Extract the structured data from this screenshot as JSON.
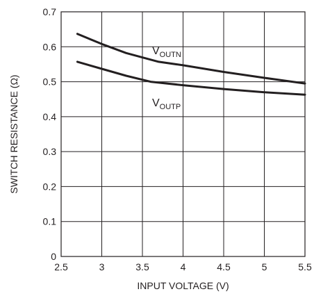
{
  "chart_data": {
    "type": "line",
    "title": "",
    "xlabel": "INPUT VOLTAGE (V)",
    "ylabel": "SWITCH RESISTANCE (Ω)",
    "xlim": [
      2.5,
      5.5
    ],
    "ylim": [
      0,
      0.7
    ],
    "grid": true,
    "x_ticks": [
      "2.5",
      "3",
      "3.5",
      "4",
      "4.5",
      "5",
      "5.5"
    ],
    "y_ticks": [
      "0",
      "0.1",
      "0.2",
      "0.3",
      "0.4",
      "0.5",
      "0.6",
      "0.7"
    ],
    "series": [
      {
        "name": "VOUTN",
        "label_main": "V",
        "label_sub": "OUTN",
        "x": [
          2.7,
          3.0,
          3.3,
          3.7,
          4.0,
          4.5,
          5.0,
          5.5
        ],
        "y": [
          0.637,
          0.608,
          0.582,
          0.557,
          0.547,
          0.528,
          0.511,
          0.495
        ]
      },
      {
        "name": "VOUTP",
        "label_main": "V",
        "label_sub": "OUTP",
        "x": [
          2.7,
          3.0,
          3.3,
          3.6,
          4.0,
          4.5,
          5.0,
          5.5
        ],
        "y": [
          0.557,
          0.537,
          0.517,
          0.5,
          0.49,
          0.479,
          0.47,
          0.463
        ]
      }
    ]
  }
}
